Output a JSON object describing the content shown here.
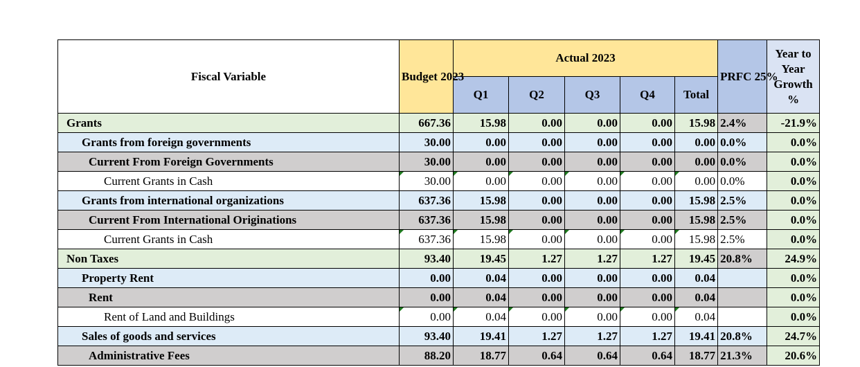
{
  "header": {
    "fiscal_variable": "Fiscal Variable",
    "budget": "Budget 2023",
    "actual": "Actual 2023",
    "prfc": "PRFC 25%",
    "growth": "Year to Year Growth %",
    "quarters": [
      "Q1",
      "Q2",
      "Q3",
      "Q4",
      "Total"
    ]
  },
  "colors": {
    "budget_header": "#ffe699",
    "quarter_header": "#b4c6e7",
    "level0_row": "#e2efda",
    "level1_row": "#ddebf7",
    "level2_row": "#d0cece"
  },
  "rows": [
    {
      "label": "Grants",
      "budget": "667.36",
      "q1": "15.98",
      "q2": "0.00",
      "q3": "0.00",
      "q4": "0.00",
      "total": "15.98",
      "prfc": "2.4%",
      "growth": "-21.9%"
    },
    {
      "label": "Grants from foreign governments",
      "budget": "30.00",
      "q1": "0.00",
      "q2": "0.00",
      "q3": "0.00",
      "q4": "0.00",
      "total": "0.00",
      "prfc": "0.0%",
      "growth": "0.0%"
    },
    {
      "label": "Current From Foreign Governments",
      "budget": "30.00",
      "q1": "0.00",
      "q2": "0.00",
      "q3": "0.00",
      "q4": "0.00",
      "total": "0.00",
      "prfc": "0.0%",
      "growth": "0.0%"
    },
    {
      "label": "Current Grants in Cash",
      "budget": "30.00",
      "q1": "0.00",
      "q2": "0.00",
      "q3": "0.00",
      "q4": "0.00",
      "total": "0.00",
      "prfc": "0.0%",
      "growth": "0.0%"
    },
    {
      "label": "Grants from international organizations",
      "budget": "637.36",
      "q1": "15.98",
      "q2": "0.00",
      "q3": "0.00",
      "q4": "0.00",
      "total": "15.98",
      "prfc": "2.5%",
      "growth": "0.0%"
    },
    {
      "label": "Current From International Originations",
      "budget": "637.36",
      "q1": "15.98",
      "q2": "0.00",
      "q3": "0.00",
      "q4": "0.00",
      "total": "15.98",
      "prfc": "2.5%",
      "growth": "0.0%"
    },
    {
      "label": "Current Grants in Cash",
      "budget": "637.36",
      "q1": "15.98",
      "q2": "0.00",
      "q3": "0.00",
      "q4": "0.00",
      "total": "15.98",
      "prfc": "2.5%",
      "growth": "0.0%"
    },
    {
      "label": "Non Taxes",
      "budget": "93.40",
      "q1": "19.45",
      "q2": "1.27",
      "q3": "1.27",
      "q4": "1.27",
      "total": "19.45",
      "prfc": "20.8%",
      "growth": "24.9%"
    },
    {
      "label": "Property Rent",
      "budget": "0.00",
      "q1": "0.04",
      "q2": "0.00",
      "q3": "0.00",
      "q4": "0.00",
      "total": "0.04",
      "prfc": "",
      "growth": "0.0%"
    },
    {
      "label": "Rent",
      "budget": "0.00",
      "q1": "0.04",
      "q2": "0.00",
      "q3": "0.00",
      "q4": "0.00",
      "total": "0.04",
      "prfc": "",
      "growth": "0.0%"
    },
    {
      "label": "Rent of Land and Buildings",
      "budget": "0.00",
      "q1": "0.04",
      "q2": "0.00",
      "q3": "0.00",
      "q4": "0.00",
      "total": "0.04",
      "prfc": "",
      "growth": "0.0%"
    },
    {
      "label": "Sales of goods and services",
      "budget": "93.40",
      "q1": "19.41",
      "q2": "1.27",
      "q3": "1.27",
      "q4": "1.27",
      "total": "19.41",
      "prfc": "20.8%",
      "growth": "24.7%"
    },
    {
      "label": "Administrative Fees",
      "budget": "88.20",
      "q1": "18.77",
      "q2": "0.64",
      "q3": "0.64",
      "q4": "0.64",
      "total": "18.77",
      "prfc": "21.3%",
      "growth": "20.6%"
    }
  ]
}
